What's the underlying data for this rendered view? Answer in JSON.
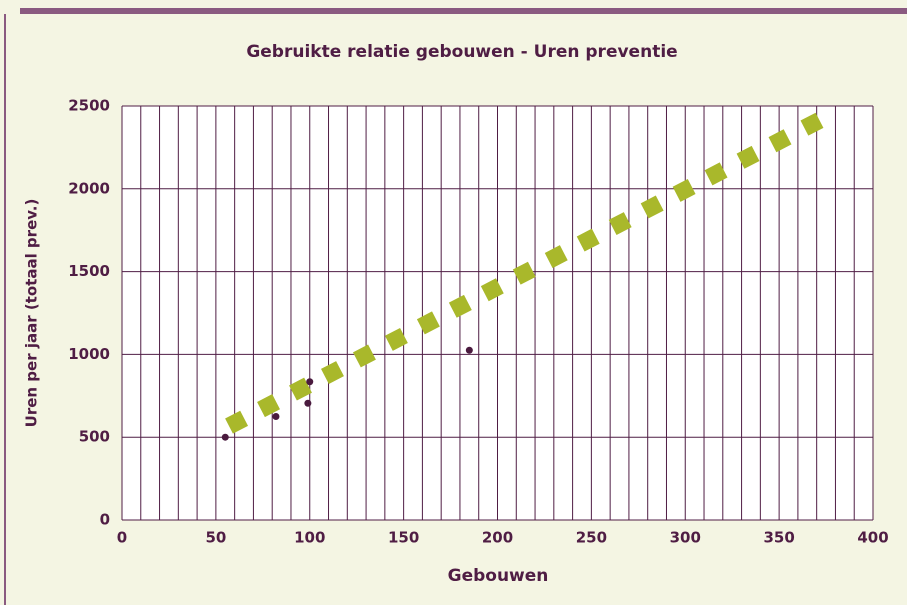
{
  "chart_data": {
    "type": "scatter",
    "title": "Gebruikte relatie gebouwen - Uren preventie",
    "x_label": "Gebouwen",
    "y_label": "Uren per jaar (totaal prev.)",
    "series": [
      {
        "color": "#4a1a3e",
        "x": [
          55,
          82,
          99,
          100,
          185
        ],
        "values": [
          500,
          625,
          705,
          835,
          1025
        ]
      }
    ],
    "trend": {
      "color": "#a9b82b",
      "x": [
        57,
        376
      ],
      "values": [
        567,
        2440
      ]
    },
    "xlim": [
      0,
      400
    ],
    "xticks": [
      0,
      50,
      100,
      150,
      200,
      250,
      300,
      350,
      400
    ],
    "xgrid": [
      0,
      10,
      20,
      30,
      40,
      50,
      60,
      70,
      80,
      90,
      100,
      110,
      120,
      130,
      140,
      150,
      160,
      170,
      180,
      190,
      200,
      210,
      220,
      230,
      240,
      250,
      260,
      270,
      280,
      290,
      300,
      310,
      320,
      330,
      340,
      350,
      360,
      370,
      380,
      390,
      400
    ],
    "ylim": [
      0,
      2500
    ],
    "yticks": [
      0,
      500,
      1000,
      1500,
      2000,
      2500
    ],
    "grid": true
  }
}
